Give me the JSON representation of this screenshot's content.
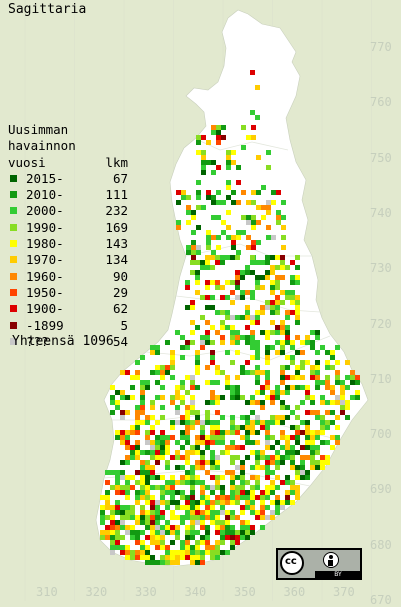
{
  "title": "Sagittaria",
  "legend": {
    "heading": [
      "Uusimman",
      "havainnon",
      "vuosi"
    ],
    "count_heading": "lkm",
    "rows": [
      {
        "label": "2015-",
        "count": "67",
        "color": "#006400"
      },
      {
        "label": "2010-",
        "count": "111",
        "color": "#129a12"
      },
      {
        "label": "2000-",
        "count": "232",
        "color": "#33cc33"
      },
      {
        "label": "1990-",
        "count": "169",
        "color": "#88dd22"
      },
      {
        "label": "1980-",
        "count": "143",
        "color": "#ffff00"
      },
      {
        "label": "1970-",
        "count": "134",
        "color": "#ffcc00"
      },
      {
        "label": "1960-",
        "count": "90",
        "color": "#ff8800"
      },
      {
        "label": "1950-",
        "count": "29",
        "color": "#ff4400"
      },
      {
        "label": "1900-",
        "count": "62",
        "color": "#dd0000"
      },
      {
        "label": "-1899",
        "count": "5",
        "color": "#880000"
      },
      {
        "label": "???",
        "count": "54",
        "color": "#c8c8c8"
      }
    ],
    "total_label": "Yhteensä",
    "total_count": "1096"
  },
  "grid_labels": {
    "north": [
      "770",
      "760",
      "750",
      "740",
      "730",
      "720",
      "710",
      "700",
      "690",
      "680",
      "670"
    ],
    "east": [
      "310",
      "320",
      "330",
      "340",
      "350",
      "360",
      "370"
    ]
  },
  "colors": {
    "background": "#e2e9cf",
    "land": "#ffffff",
    "grid": "#d9e0cc"
  },
  "license_badge": {
    "icons": [
      "cc-icon",
      "attribution-icon"
    ],
    "label": "BY"
  }
}
